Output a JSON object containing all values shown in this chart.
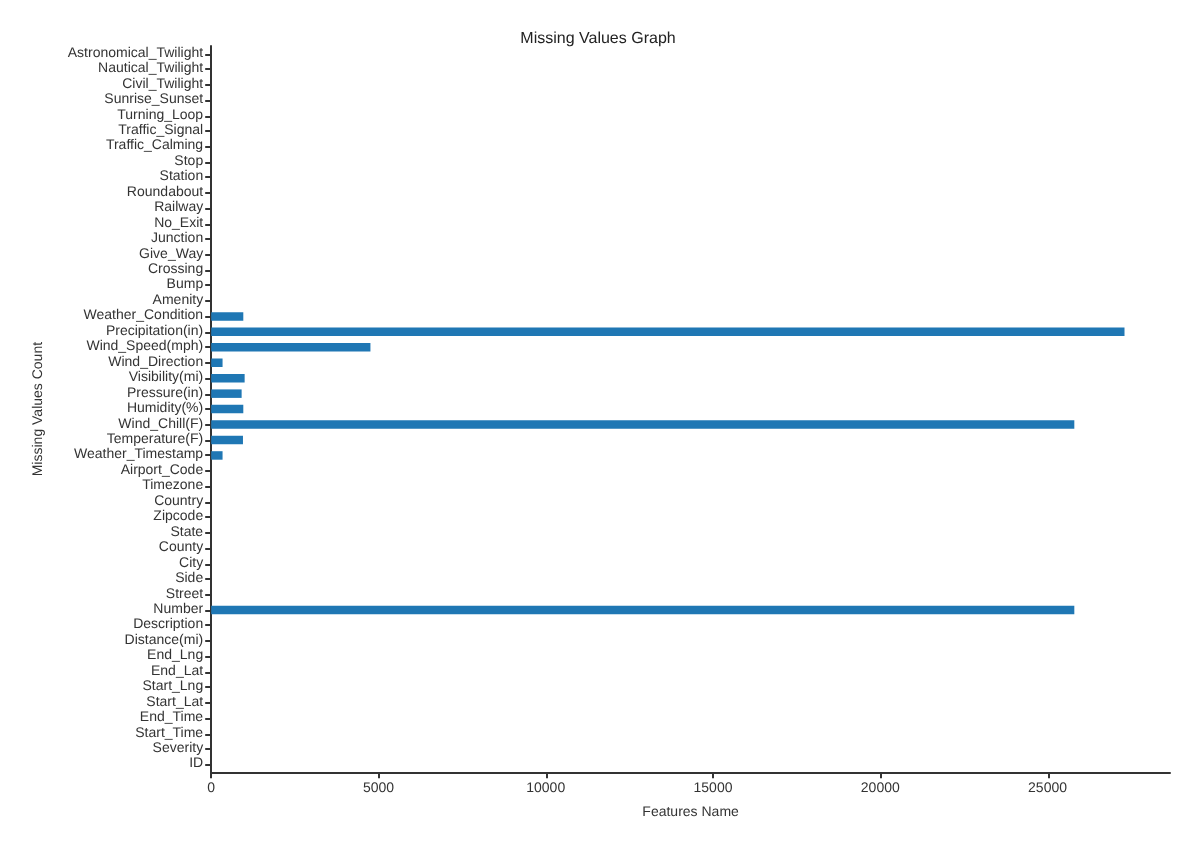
{
  "chart_data": {
    "type": "bar",
    "orientation": "horizontal",
    "title": "Missing Values Graph",
    "xlabel": "Features Name",
    "ylabel": "Missing Values Count",
    "categories": [
      "Astronomical_Twilight",
      "Nautical_Twilight",
      "Civil_Twilight",
      "Sunrise_Sunset",
      "Turning_Loop",
      "Traffic_Signal",
      "Traffic_Calming",
      "Stop",
      "Station",
      "Roundabout",
      "Railway",
      "No_Exit",
      "Junction",
      "Give_Way",
      "Crossing",
      "Bump",
      "Amenity",
      "Weather_Condition",
      "Precipitation(in)",
      "Wind_Speed(mph)",
      "Wind_Direction",
      "Visibility(mi)",
      "Pressure(in)",
      "Humidity(%)",
      "Wind_Chill(F)",
      "Temperature(F)",
      "Weather_Timestamp",
      "Airport_Code",
      "Timezone",
      "Country",
      "Zipcode",
      "State",
      "County",
      "City",
      "Side",
      "Street",
      "Number",
      "Description",
      "Distance(mi)",
      "End_Lng",
      "End_Lat",
      "Start_Lng",
      "Start_Lat",
      "End_Time",
      "Start_Time",
      "Severity",
      "ID"
    ],
    "values": [
      0,
      0,
      0,
      0,
      0,
      0,
      0,
      0,
      0,
      0,
      0,
      0,
      0,
      0,
      0,
      0,
      0,
      960,
      27300,
      4760,
      340,
      1000,
      910,
      960,
      25800,
      950,
      340,
      0,
      0,
      0,
      0,
      0,
      0,
      0,
      0,
      0,
      25800,
      0,
      0,
      0,
      0,
      0,
      0,
      0,
      0,
      0,
      0
    ],
    "color": "#1f77b4",
    "xlim": [
      0,
      28660
    ],
    "xticks": [
      0,
      5000,
      10000,
      15000,
      20000,
      25000
    ],
    "grid": false
  }
}
